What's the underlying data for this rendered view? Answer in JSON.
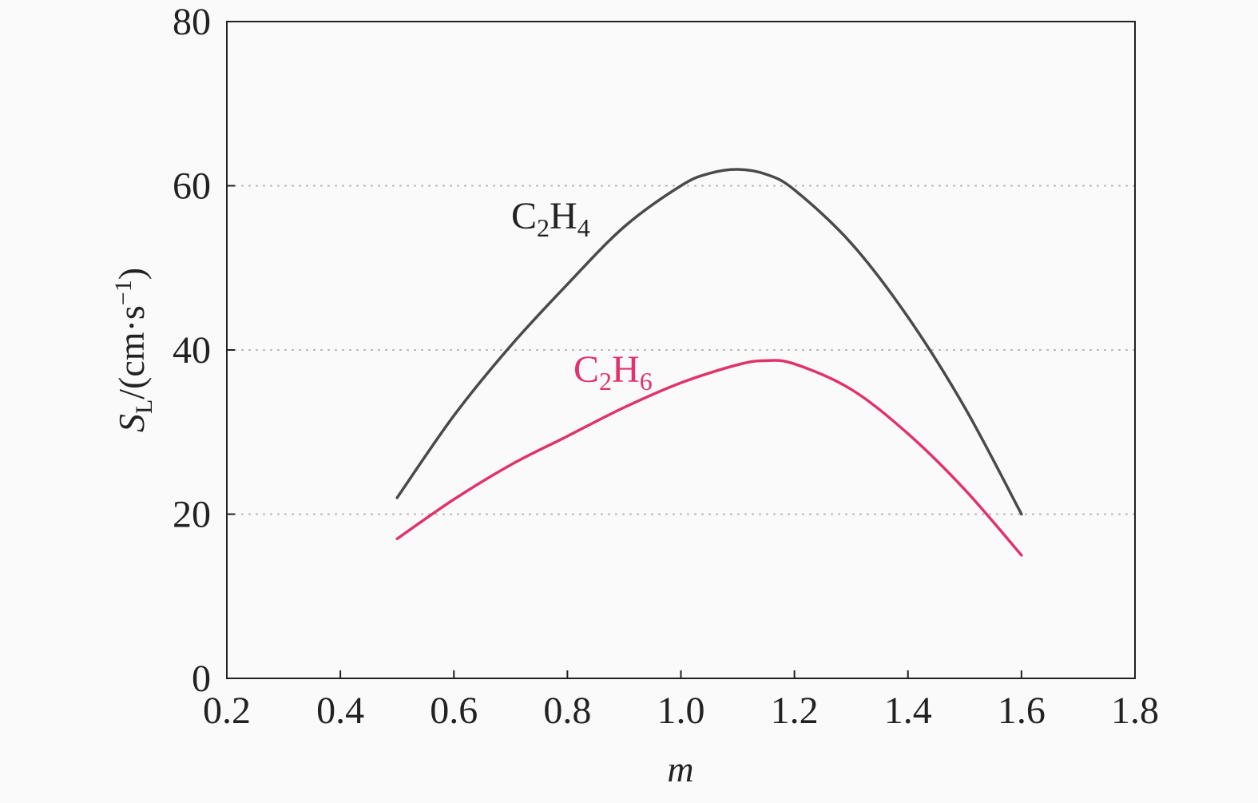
{
  "chart_data": {
    "type": "line",
    "title": "",
    "xlabel": "m",
    "ylabel": {
      "main": "S",
      "sub": "L",
      "unit": "/(cm·s",
      "sup": "−1",
      "close": ")"
    },
    "xlim": [
      0.2,
      1.8
    ],
    "ylim": [
      0,
      80
    ],
    "xticks": [
      "0.2",
      "0.4",
      "0.6",
      "0.8",
      "1.0",
      "1.2",
      "1.4",
      "1.6",
      "1.8"
    ],
    "yticks": [
      "0",
      "20",
      "40",
      "60",
      "80"
    ],
    "grid": "horizontal dotted at 20, 40, 60",
    "legend": "inline labels",
    "series": [
      {
        "name": "C2H4",
        "label": {
          "base1": "C",
          "sub1": "2",
          "base2": "H",
          "sub2": "4"
        },
        "color": "#4a4a4a",
        "x": [
          0.5,
          0.6,
          0.7,
          0.8,
          0.9,
          1.0,
          1.05,
          1.1,
          1.15,
          1.2,
          1.3,
          1.4,
          1.5,
          1.6
        ],
        "y": [
          22,
          32,
          40.5,
          48,
          55,
          60,
          61.5,
          62,
          61.4,
          59.5,
          53,
          44,
          33,
          20
        ]
      },
      {
        "name": "C2H6",
        "label": {
          "base1": "C",
          "sub1": "2",
          "base2": "H",
          "sub2": "6"
        },
        "color": "#e0336a",
        "x": [
          0.5,
          0.6,
          0.7,
          0.8,
          0.9,
          1.0,
          1.1,
          1.15,
          1.2,
          1.3,
          1.4,
          1.5,
          1.6
        ],
        "y": [
          17,
          21.8,
          26,
          29.5,
          33,
          36,
          38.2,
          38.7,
          38.3,
          35.2,
          29.8,
          23,
          15
        ]
      }
    ]
  }
}
